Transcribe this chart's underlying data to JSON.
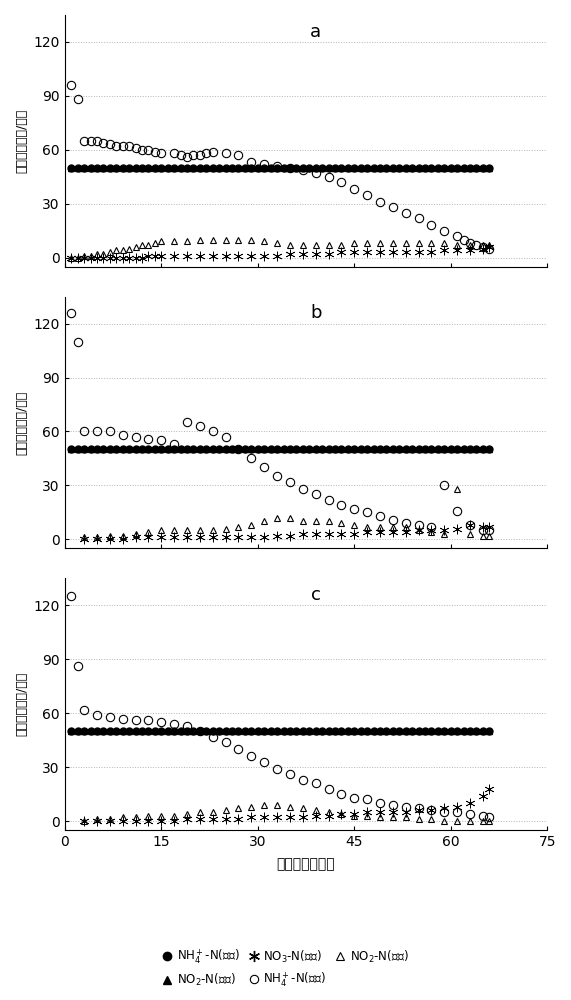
{
  "subplot_labels": [
    "a",
    "b",
    "c"
  ],
  "xlabel": "培养时间（天）",
  "ylabel": "氮浓度（毫克/升）",
  "xlim": [
    0,
    75
  ],
  "ylim": [
    -5,
    135
  ],
  "yticks": [
    0,
    30,
    60,
    90,
    120
  ],
  "xticks": [
    0,
    15,
    30,
    45,
    60,
    75
  ],
  "panel_a": {
    "NH4_in_x": [
      1,
      2,
      3,
      4,
      5,
      6,
      7,
      8,
      9,
      10,
      11,
      12,
      13,
      14,
      15,
      16,
      17,
      18,
      19,
      20,
      21,
      22,
      23,
      24,
      25,
      26,
      27,
      28,
      29,
      30,
      31,
      32,
      33,
      34,
      35,
      36,
      37,
      38,
      39,
      40,
      41,
      42,
      43,
      44,
      45,
      46,
      47,
      48,
      49,
      50,
      51,
      52,
      53,
      54,
      55,
      56,
      57,
      58,
      59,
      60,
      61,
      62,
      63,
      64,
      65,
      66
    ],
    "NH4_in_y": [
      50,
      50,
      50,
      50,
      50,
      50,
      50,
      50,
      50,
      50,
      50,
      50,
      50,
      50,
      50,
      50,
      50,
      50,
      50,
      50,
      50,
      50,
      50,
      50,
      50,
      50,
      50,
      50,
      50,
      50,
      50,
      50,
      50,
      50,
      50,
      50,
      50,
      50,
      50,
      50,
      50,
      50,
      50,
      50,
      50,
      50,
      50,
      50,
      50,
      50,
      50,
      50,
      50,
      50,
      50,
      50,
      50,
      50,
      50,
      50,
      50,
      50,
      50,
      50,
      50,
      50
    ],
    "NO2_in_x": [
      1,
      2,
      3,
      4,
      5,
      6,
      7,
      8,
      9,
      10,
      11,
      12,
      13,
      14,
      15,
      16,
      17,
      18,
      19,
      20,
      21,
      22,
      23,
      24,
      25,
      26,
      27,
      28,
      29,
      30,
      31,
      32,
      33,
      34,
      35,
      36,
      37,
      38,
      39,
      40,
      41,
      42,
      43,
      44,
      45,
      46,
      47,
      48,
      49,
      50,
      51,
      52,
      53,
      54,
      55,
      56,
      57,
      58,
      59,
      60,
      61,
      62,
      63,
      64,
      65,
      66
    ],
    "NO2_in_y": [
      50,
      50,
      50,
      50,
      50,
      50,
      50,
      50,
      50,
      50,
      50,
      50,
      50,
      50,
      50,
      50,
      50,
      50,
      50,
      50,
      50,
      50,
      50,
      50,
      50,
      50,
      50,
      50,
      50,
      50,
      50,
      50,
      50,
      50,
      50,
      50,
      50,
      50,
      50,
      50,
      50,
      50,
      50,
      50,
      50,
      50,
      50,
      50,
      50,
      50,
      50,
      50,
      50,
      50,
      50,
      50,
      50,
      50,
      50,
      50,
      50,
      50,
      50,
      50,
      50,
      50
    ],
    "NH4_out_x": [
      1,
      2,
      3,
      4,
      5,
      6,
      7,
      8,
      9,
      10,
      11,
      12,
      13,
      14,
      15,
      17,
      18,
      19,
      20,
      21,
      22,
      23,
      25,
      27,
      29,
      31,
      33,
      35,
      37,
      39,
      41,
      43,
      45,
      47,
      49,
      51,
      53,
      55,
      57,
      59,
      61,
      62,
      63,
      64,
      65,
      66
    ],
    "NH4_out_y": [
      96,
      88,
      65,
      65,
      65,
      64,
      63,
      62,
      62,
      62,
      61,
      60,
      60,
      59,
      58,
      58,
      57,
      56,
      57,
      57,
      58,
      59,
      58,
      57,
      53,
      52,
      51,
      50,
      49,
      47,
      45,
      42,
      38,
      35,
      31,
      28,
      25,
      22,
      18,
      15,
      12,
      10,
      8,
      7,
      6,
      5
    ],
    "NO2_out_x": [
      1,
      2,
      3,
      4,
      5,
      6,
      7,
      8,
      9,
      10,
      11,
      12,
      13,
      14,
      15,
      17,
      19,
      21,
      23,
      25,
      27,
      29,
      31,
      33,
      35,
      37,
      39,
      41,
      43,
      45,
      47,
      49,
      51,
      53,
      55,
      57,
      59,
      61,
      63,
      65,
      66
    ],
    "NO2_out_y": [
      0,
      0,
      1,
      1,
      2,
      2,
      3,
      4,
      4,
      5,
      6,
      7,
      7,
      8,
      9,
      9,
      9,
      10,
      10,
      10,
      10,
      10,
      9,
      8,
      7,
      7,
      7,
      7,
      7,
      8,
      8,
      8,
      8,
      8,
      8,
      8,
      8,
      7,
      7,
      7,
      7
    ],
    "NO3_out_x": [
      1,
      2,
      3,
      4,
      5,
      6,
      7,
      8,
      9,
      10,
      11,
      12,
      13,
      14,
      15,
      17,
      19,
      21,
      23,
      25,
      27,
      29,
      31,
      33,
      35,
      37,
      39,
      41,
      43,
      45,
      47,
      49,
      51,
      53,
      55,
      57,
      59,
      61,
      63,
      65,
      66
    ],
    "NO3_out_y": [
      0,
      0,
      0,
      0,
      0,
      0,
      0,
      0,
      0,
      0,
      0,
      0,
      1,
      1,
      1,
      1,
      1,
      1,
      1,
      1,
      1,
      1,
      1,
      1,
      2,
      2,
      2,
      2,
      3,
      3,
      3,
      3,
      3,
      3,
      3,
      3,
      4,
      4,
      4,
      5,
      6
    ]
  },
  "panel_b": {
    "NH4_in_x": [
      1,
      2,
      3,
      4,
      5,
      6,
      7,
      8,
      9,
      10,
      11,
      12,
      13,
      14,
      15,
      16,
      17,
      18,
      19,
      20,
      21,
      22,
      23,
      24,
      25,
      26,
      27,
      28,
      29,
      30,
      31,
      32,
      33,
      34,
      35,
      36,
      37,
      38,
      39,
      40,
      41,
      42,
      43,
      44,
      45,
      46,
      47,
      48,
      49,
      50,
      51,
      52,
      53,
      54,
      55,
      56,
      57,
      58,
      59,
      60,
      61,
      62,
      63,
      64,
      65,
      66
    ],
    "NH4_in_y": [
      50,
      50,
      50,
      50,
      50,
      50,
      50,
      50,
      50,
      50,
      50,
      50,
      50,
      50,
      50,
      50,
      50,
      50,
      50,
      50,
      50,
      50,
      50,
      50,
      50,
      50,
      50,
      50,
      50,
      50,
      50,
      50,
      50,
      50,
      50,
      50,
      50,
      50,
      50,
      50,
      50,
      50,
      50,
      50,
      50,
      50,
      50,
      50,
      50,
      50,
      50,
      50,
      50,
      50,
      50,
      50,
      50,
      50,
      50,
      50,
      50,
      50,
      50,
      50,
      50,
      50
    ],
    "NO2_in_x": [
      1,
      2,
      3,
      4,
      5,
      6,
      7,
      8,
      9,
      10,
      11,
      12,
      13,
      14,
      15,
      16,
      17,
      18,
      19,
      20,
      21,
      22,
      23,
      24,
      25,
      26,
      27,
      28,
      29,
      30,
      31,
      32,
      33,
      34,
      35,
      36,
      37,
      38,
      39,
      40,
      41,
      42,
      43,
      44,
      45,
      46,
      47,
      48,
      49,
      50,
      51,
      52,
      53,
      54,
      55,
      56,
      57,
      58,
      59,
      60,
      61,
      62,
      63,
      64,
      65,
      66
    ],
    "NO2_in_y": [
      50,
      50,
      50,
      50,
      50,
      50,
      50,
      50,
      50,
      50,
      50,
      50,
      50,
      50,
      50,
      50,
      50,
      50,
      50,
      50,
      50,
      50,
      50,
      50,
      50,
      50,
      50,
      50,
      50,
      50,
      50,
      50,
      50,
      50,
      50,
      50,
      50,
      50,
      50,
      50,
      50,
      50,
      50,
      50,
      50,
      50,
      50,
      50,
      50,
      50,
      50,
      50,
      50,
      50,
      50,
      50,
      50,
      50,
      50,
      50,
      50,
      50,
      50,
      50,
      50,
      50
    ],
    "NH4_out_x": [
      1,
      2,
      3,
      5,
      7,
      9,
      11,
      13,
      15,
      17,
      19,
      21,
      23,
      25,
      27,
      29,
      31,
      33,
      35,
      37,
      39,
      41,
      43,
      45,
      47,
      49,
      51,
      53,
      55,
      57,
      59,
      61,
      63,
      65,
      66
    ],
    "NH4_out_y": [
      126,
      110,
      60,
      60,
      60,
      58,
      57,
      56,
      55,
      53,
      65,
      63,
      60,
      57,
      50,
      45,
      40,
      35,
      32,
      28,
      25,
      22,
      19,
      17,
      15,
      13,
      11,
      9,
      8,
      7,
      30,
      16,
      8,
      5,
      5
    ],
    "NO2_out_x": [
      3,
      5,
      7,
      9,
      11,
      13,
      15,
      17,
      19,
      21,
      23,
      25,
      27,
      29,
      31,
      33,
      35,
      37,
      39,
      41,
      43,
      45,
      47,
      49,
      51,
      53,
      55,
      57,
      59,
      61,
      63,
      65,
      66
    ],
    "NO2_out_y": [
      1,
      1,
      2,
      2,
      3,
      4,
      5,
      5,
      5,
      5,
      5,
      6,
      7,
      8,
      10,
      12,
      12,
      10,
      10,
      10,
      9,
      8,
      7,
      7,
      7,
      7,
      5,
      4,
      3,
      28,
      3,
      2,
      2
    ],
    "NO3_out_x": [
      3,
      5,
      7,
      9,
      11,
      13,
      15,
      17,
      19,
      21,
      23,
      25,
      27,
      29,
      31,
      33,
      35,
      37,
      39,
      41,
      43,
      45,
      47,
      49,
      51,
      53,
      55,
      57,
      59,
      61,
      63,
      65,
      66
    ],
    "NO3_out_y": [
      0,
      0,
      0,
      0,
      1,
      1,
      1,
      1,
      1,
      1,
      1,
      1,
      1,
      1,
      1,
      2,
      2,
      3,
      3,
      3,
      3,
      3,
      4,
      4,
      4,
      4,
      5,
      5,
      5,
      6,
      8,
      7,
      7
    ]
  },
  "panel_c": {
    "NH4_in_x": [
      1,
      2,
      3,
      4,
      5,
      6,
      7,
      8,
      9,
      10,
      11,
      12,
      13,
      14,
      15,
      16,
      17,
      18,
      19,
      20,
      21,
      22,
      23,
      24,
      25,
      26,
      27,
      28,
      29,
      30,
      31,
      32,
      33,
      34,
      35,
      36,
      37,
      38,
      39,
      40,
      41,
      42,
      43,
      44,
      45,
      46,
      47,
      48,
      49,
      50,
      51,
      52,
      53,
      54,
      55,
      56,
      57,
      58,
      59,
      60,
      61,
      62,
      63,
      64,
      65,
      66
    ],
    "NH4_in_y": [
      50,
      50,
      50,
      50,
      50,
      50,
      50,
      50,
      50,
      50,
      50,
      50,
      50,
      50,
      50,
      50,
      50,
      50,
      50,
      50,
      50,
      50,
      50,
      50,
      50,
      50,
      50,
      50,
      50,
      50,
      50,
      50,
      50,
      50,
      50,
      50,
      50,
      50,
      50,
      50,
      50,
      50,
      50,
      50,
      50,
      50,
      50,
      50,
      50,
      50,
      50,
      50,
      50,
      50,
      50,
      50,
      50,
      50,
      50,
      50,
      50,
      50,
      50,
      50,
      50,
      50
    ],
    "NO2_in_x": [
      1,
      2,
      3,
      4,
      5,
      6,
      7,
      8,
      9,
      10,
      11,
      12,
      13,
      14,
      15,
      16,
      17,
      18,
      19,
      20,
      21,
      22,
      23,
      24,
      25,
      26,
      27,
      28,
      29,
      30,
      31,
      32,
      33,
      34,
      35,
      36,
      37,
      38,
      39,
      40,
      41,
      42,
      43,
      44,
      45,
      46,
      47,
      48,
      49,
      50,
      51,
      52,
      53,
      54,
      55,
      56,
      57,
      58,
      59,
      60,
      61,
      62,
      63,
      64,
      65,
      66
    ],
    "NO2_in_y": [
      50,
      50,
      50,
      50,
      50,
      50,
      50,
      50,
      50,
      50,
      50,
      50,
      50,
      50,
      50,
      50,
      50,
      50,
      50,
      50,
      50,
      50,
      50,
      50,
      50,
      50,
      50,
      50,
      50,
      50,
      50,
      50,
      50,
      50,
      50,
      50,
      50,
      50,
      50,
      50,
      50,
      50,
      50,
      50,
      50,
      50,
      50,
      50,
      50,
      50,
      50,
      50,
      50,
      50,
      50,
      50,
      50,
      50,
      50,
      50,
      50,
      50,
      50,
      50,
      50,
      50
    ],
    "NH4_out_x": [
      1,
      2,
      3,
      5,
      7,
      9,
      11,
      13,
      15,
      17,
      19,
      21,
      23,
      25,
      27,
      29,
      31,
      33,
      35,
      37,
      39,
      41,
      43,
      45,
      47,
      49,
      51,
      53,
      55,
      57,
      59,
      61,
      63,
      65,
      66
    ],
    "NH4_out_y": [
      125,
      86,
      62,
      59,
      58,
      57,
      56,
      56,
      55,
      54,
      53,
      50,
      47,
      44,
      40,
      36,
      33,
      29,
      26,
      23,
      21,
      18,
      15,
      13,
      12,
      10,
      9,
      8,
      7,
      6,
      5,
      5,
      4,
      3,
      2
    ],
    "NO2_out_x": [
      3,
      5,
      7,
      9,
      11,
      13,
      15,
      17,
      19,
      21,
      23,
      25,
      27,
      29,
      31,
      33,
      35,
      37,
      39,
      41,
      43,
      45,
      47,
      49,
      51,
      53,
      55,
      57,
      59,
      61,
      63,
      65,
      66
    ],
    "NO2_out_y": [
      0,
      1,
      1,
      2,
      2,
      3,
      3,
      3,
      4,
      5,
      5,
      6,
      7,
      8,
      9,
      9,
      8,
      7,
      6,
      5,
      4,
      3,
      3,
      2,
      2,
      2,
      1,
      1,
      0,
      0,
      0,
      0,
      0
    ],
    "NO3_out_x": [
      3,
      5,
      7,
      9,
      11,
      13,
      15,
      17,
      19,
      21,
      23,
      25,
      27,
      29,
      31,
      33,
      35,
      37,
      39,
      41,
      43,
      45,
      47,
      49,
      51,
      53,
      55,
      57,
      59,
      61,
      63,
      65,
      66
    ],
    "NO3_out_y": [
      0,
      0,
      0,
      0,
      0,
      0,
      0,
      0,
      1,
      1,
      1,
      1,
      1,
      2,
      2,
      2,
      2,
      2,
      3,
      3,
      4,
      4,
      5,
      5,
      5,
      5,
      6,
      6,
      7,
      8,
      10,
      14,
      18
    ]
  },
  "marker_size": 5,
  "background_color": "#ffffff"
}
